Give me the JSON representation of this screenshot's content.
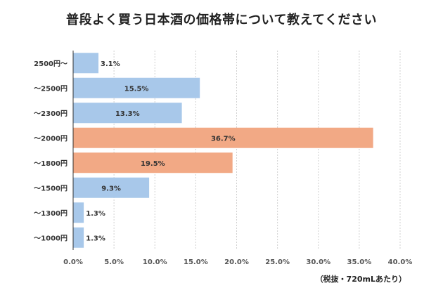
{
  "chart_data": {
    "type": "bar",
    "orientation": "horizontal",
    "title": "普段よく買う日本酒の価格帯について教えてください",
    "note": "（税抜・720mLあたり）",
    "categories": [
      "2500円〜",
      "〜2500円",
      "〜2300円",
      "〜2000円",
      "〜1800円",
      "〜1500円",
      "〜1300円",
      "〜1000円"
    ],
    "values": [
      3.1,
      15.5,
      13.3,
      36.7,
      19.5,
      9.3,
      1.3,
      1.3
    ],
    "value_labels": [
      "3.1%",
      "15.5%",
      "13.3%",
      "36.7%",
      "19.5%",
      "9.3%",
      "1.3%",
      "1.3%"
    ],
    "highlight": [
      false,
      false,
      false,
      true,
      true,
      false,
      false,
      false
    ],
    "xlim": [
      0,
      40
    ],
    "xticks": [
      "0.0%",
      "5.0%",
      "10.0%",
      "15.0%",
      "20.0%",
      "25.0%",
      "30.0%",
      "35.0%",
      "40.0%"
    ],
    "colors": {
      "base": "#a8c8ea",
      "highlight": "#f2a985"
    },
    "grid": true
  }
}
